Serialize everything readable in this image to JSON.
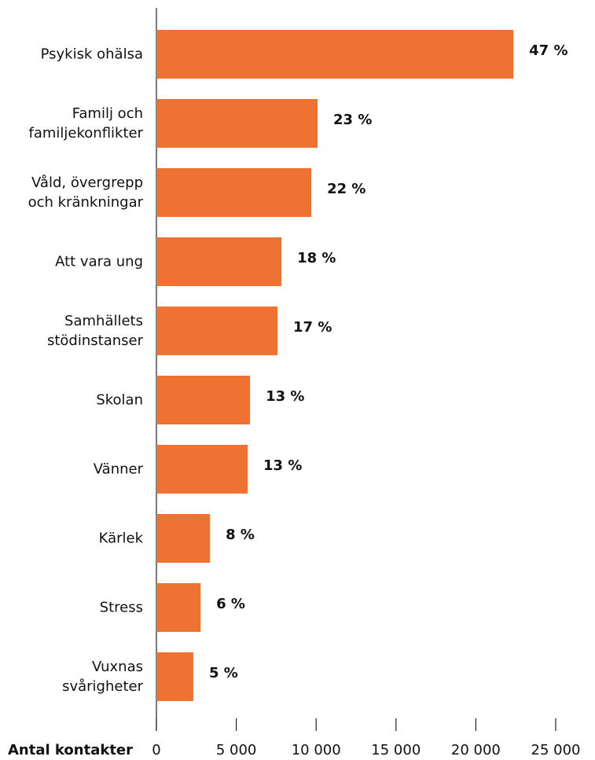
{
  "chart_data": {
    "type": "bar",
    "orientation": "horizontal",
    "x_axis_label": "Antal kontakter",
    "categories": [
      "Psykisk ohälsa",
      "Familj och\nfamiljekonflikter",
      "Våld, övergrepp\noch kränkningar",
      "Att vara ung",
      "Samhällets\nstödinstanser",
      "Skolan",
      "Vänner",
      "Kärlek",
      "Stress",
      "Vuxnas\nsvårigheter"
    ],
    "values": [
      22350,
      10090,
      9700,
      7830,
      7580,
      5860,
      5710,
      3350,
      2760,
      2310
    ],
    "percent_labels": [
      "47 %",
      "23 %",
      "22 %",
      "18 %",
      "17 %",
      "13 %",
      "13 %",
      "8 %",
      "6 %",
      "5 %"
    ],
    "color": "#f07232",
    "xlim": [
      0,
      25000
    ],
    "xticks": [
      0,
      {
        "value": 5000,
        "label": "5 000"
      },
      {
        "value": 10000,
        "label": "10 000"
      },
      {
        "value": 15000,
        "label": "15 000"
      },
      {
        "value": 20000,
        "label": "20 000"
      },
      {
        "value": 25000,
        "label": "25 000"
      }
    ]
  }
}
